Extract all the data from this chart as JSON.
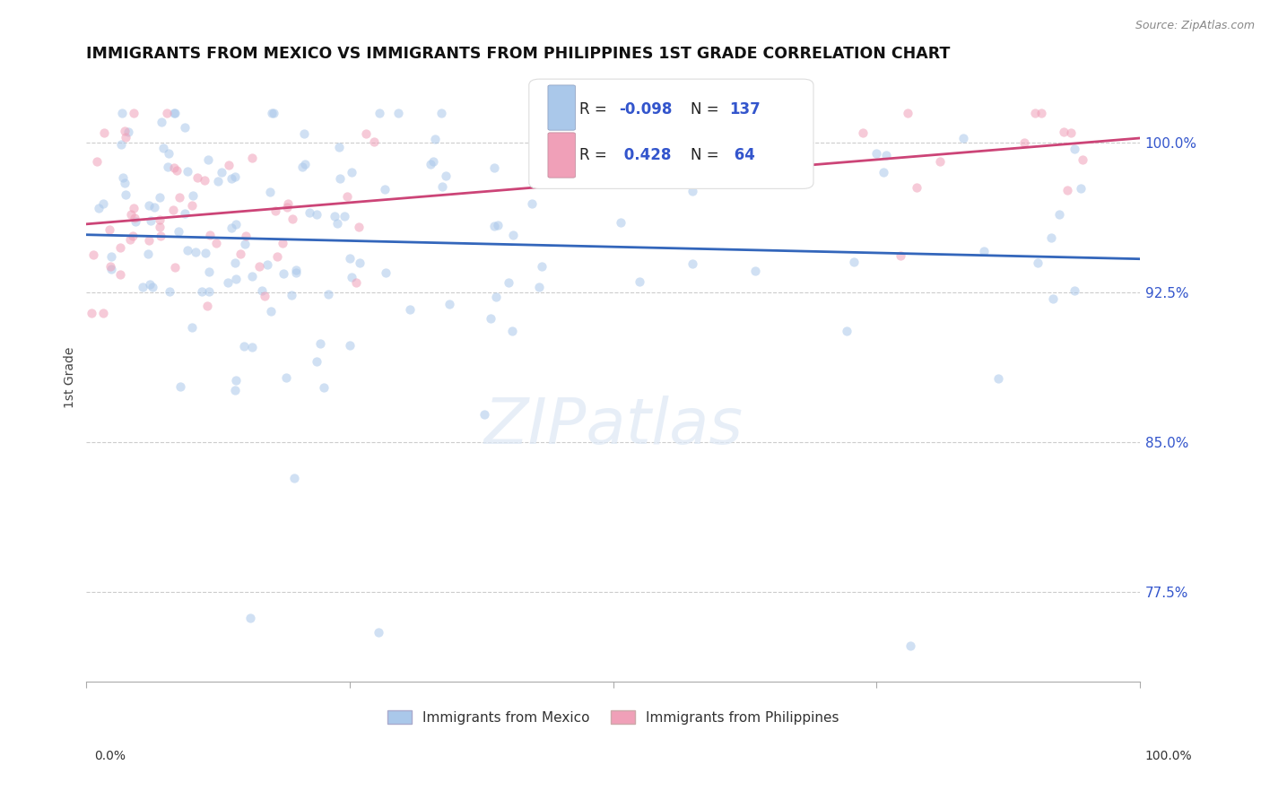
{
  "title": "IMMIGRANTS FROM MEXICO VS IMMIGRANTS FROM PHILIPPINES 1ST GRADE CORRELATION CHART",
  "source": "Source: ZipAtlas.com",
  "ylabel": "1st Grade",
  "xlim": [
    0.0,
    100.0
  ],
  "ylim": [
    73.0,
    103.5
  ],
  "yticks": [
    77.5,
    85.0,
    92.5,
    100.0
  ],
  "yticklabels": [
    "77.5%",
    "85.0%",
    "92.5%",
    "100.0%"
  ],
  "mexico_color": "#aac8ea",
  "philippines_color": "#f0a0b8",
  "mexico_line_color": "#3366bb",
  "philippines_line_color": "#cc4477",
  "scatter_alpha": 0.55,
  "scatter_size": 55,
  "watermark_text": "ZIPatlas",
  "background_color": "#ffffff",
  "grid_color": "#cccccc",
  "mexico_seed": 42,
  "philippines_seed": 17,
  "legend_label_color": "#222222",
  "legend_value_color": "#3355cc"
}
